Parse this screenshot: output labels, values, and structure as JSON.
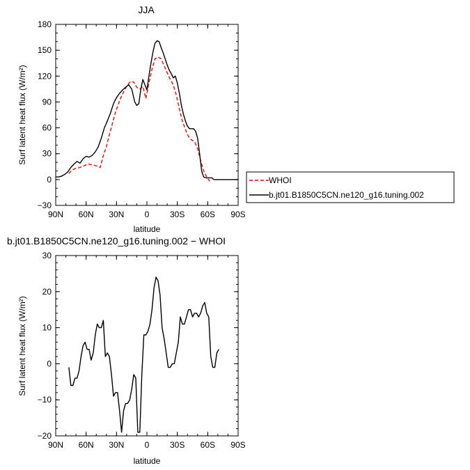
{
  "chart_data": [
    {
      "type": "line",
      "title": "JJA",
      "xlabel": "latitude",
      "ylabel": "Surf latent heat flux (W/m²)",
      "xticks": [
        "90N",
        "60N",
        "30N",
        "0",
        "30S",
        "60S",
        "90S"
      ],
      "xlim": [
        -90,
        90
      ],
      "ylim": [
        -30,
        180
      ],
      "yticks": [
        "−30",
        "0",
        "30",
        "60",
        "90",
        "120",
        "150",
        "180"
      ],
      "legend": "outside right",
      "series": [
        {
          "name": "WHOI",
          "color": "#ff0000",
          "style": "dashed",
          "x": [
            -77,
            -74,
            -70,
            -66,
            -62,
            -58,
            -54,
            -50,
            -46,
            -43,
            -40,
            -37,
            -34,
            -31,
            -28,
            -25,
            -22,
            -19,
            -16,
            -13,
            -10,
            -7,
            -4,
            -1,
            2,
            5,
            8,
            11,
            14,
            17,
            20,
            23,
            26,
            29,
            32,
            35,
            38,
            41,
            44,
            47,
            50,
            53,
            56,
            59,
            62,
            65,
            68,
            71
          ],
          "y": [
            7,
            11,
            13,
            14,
            16,
            18,
            17,
            16,
            14,
            28,
            38,
            52,
            65,
            78,
            88,
            97,
            104,
            110,
            114,
            113,
            107,
            105,
            108,
            94,
            112,
            128,
            140,
            142,
            140,
            132,
            124,
            116,
            110,
            98,
            82,
            68,
            58,
            50,
            46,
            44,
            36,
            22,
            10,
            3,
            -2,
            null,
            null,
            null
          ]
        },
        {
          "name": "b.jt01.B1850C5CN.ne120_g16.tuning.002",
          "color": "#000000",
          "style": "solid",
          "x": [
            -90,
            -87,
            -84,
            -81,
            -78,
            -75,
            -72,
            -69,
            -66,
            -63,
            -60,
            -57,
            -54,
            -51,
            -48,
            -45,
            -42,
            -39,
            -36,
            -33,
            -30,
            -27,
            -24,
            -21,
            -18,
            -15,
            -12,
            -10,
            -8,
            -6,
            -4,
            -2,
            0,
            2,
            4,
            6,
            8,
            10,
            12,
            14,
            16,
            18,
            20,
            22,
            24,
            26,
            28,
            30,
            32,
            34,
            36,
            38,
            40,
            42,
            44,
            46,
            48,
            50,
            52,
            54,
            56,
            58,
            60,
            62,
            64,
            66,
            68,
            70,
            72,
            74,
            76,
            78,
            80,
            82,
            84,
            86,
            88,
            90
          ],
          "y": [
            3,
            3,
            4,
            6,
            9,
            14,
            18,
            21,
            19,
            24,
            27,
            26,
            28,
            32,
            38,
            48,
            60,
            68,
            77,
            88,
            95,
            100,
            104,
            107,
            110,
            105,
            90,
            86,
            88,
            105,
            116,
            110,
            104,
            120,
            135,
            148,
            158,
            161,
            160,
            153,
            147,
            140,
            133,
            127,
            123,
            118,
            120,
            112,
            100,
            86,
            76,
            68,
            62,
            59,
            59,
            59,
            56,
            48,
            30,
            10,
            3,
            2,
            2,
            2,
            2,
            0,
            0,
            0,
            0,
            0,
            0,
            0,
            0,
            0,
            0,
            0,
            0,
            0
          ]
        }
      ]
    },
    {
      "type": "line",
      "title": "b.jt01.B1850C5CN.ne120_g16.tuning.002 − WHOI",
      "xlabel": "latitude",
      "ylabel": "Surf latent heat flux (W/m²)",
      "xticks": [
        "90N",
        "60N",
        "30N",
        "0",
        "30S",
        "60S",
        "90S"
      ],
      "xlim": [
        -90,
        90
      ],
      "ylim": [
        -20,
        30
      ],
      "yticks": [
        "−20",
        "−10",
        "0",
        "10",
        "20",
        "30"
      ],
      "series": [
        {
          "name": "",
          "color": "#000000",
          "style": "solid",
          "x": [
            -77,
            -75,
            -73,
            -71,
            -69,
            -67,
            -65,
            -63,
            -61,
            -59,
            -57,
            -55,
            -53,
            -51,
            -49,
            -47,
            -45,
            -43,
            -41,
            -39,
            -37,
            -35,
            -33,
            -31,
            -29,
            -27,
            -25,
            -23,
            -21,
            -19,
            -17,
            -15,
            -13,
            -11,
            -9,
            -7,
            -5,
            -3,
            -1,
            1,
            3,
            5,
            7,
            9,
            11,
            13,
            15,
            17,
            19,
            21,
            23,
            25,
            27,
            29,
            31,
            33,
            35,
            37,
            39,
            41,
            43,
            45,
            47,
            49,
            51,
            53,
            55,
            57,
            59,
            61,
            63,
            65,
            67,
            69,
            71
          ],
          "y": [
            -1,
            -6,
            -6,
            -4,
            -4,
            -2,
            2,
            5,
            6,
            4,
            4,
            1,
            3,
            8,
            11,
            10,
            10,
            12,
            2,
            3,
            2,
            -3,
            -9,
            -8,
            -8,
            -13,
            -19,
            -13,
            -11,
            -11,
            -10,
            -7,
            -3,
            -4,
            -19,
            -19,
            -3,
            8,
            8,
            9,
            11,
            15,
            21,
            24,
            23,
            19,
            10,
            7,
            3,
            -1,
            -1,
            0,
            0,
            3,
            6,
            13,
            11,
            11,
            13,
            15,
            15,
            13,
            14,
            14,
            13,
            14,
            16,
            17,
            14,
            13,
            2,
            -1,
            -1,
            3,
            4
          ]
        }
      ]
    }
  ],
  "legend_labels": {
    "whoi": "WHOI",
    "model": "b.jt01.B1850C5CN.ne120_g16.tuning.002"
  }
}
